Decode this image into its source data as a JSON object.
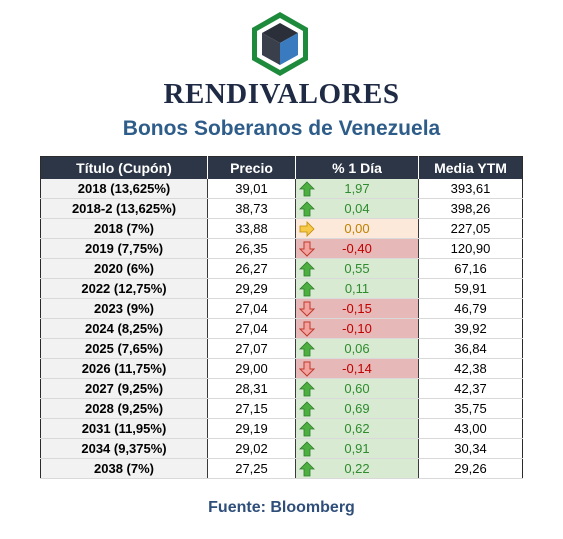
{
  "brand": "RENDIVALORES",
  "subtitle": "Bonos Soberanos de Venezuela",
  "table": {
    "headers": [
      "Título (Cupón)",
      "Precio",
      "% 1 Día",
      "Media YTM"
    ],
    "rows": [
      {
        "title": "2018 (13,625%)",
        "price": "39,01",
        "change": "1,97",
        "direction": "up",
        "ytm": "393,61"
      },
      {
        "title": "2018-2 (13,625%)",
        "price": "38,73",
        "change": "0,04",
        "direction": "up",
        "ytm": "398,26"
      },
      {
        "title": "2018 (7%)",
        "price": "33,88",
        "change": "0,00",
        "direction": "flat",
        "ytm": "227,05"
      },
      {
        "title": "2019 (7,75%)",
        "price": "26,35",
        "change": "-0,40",
        "direction": "down",
        "ytm": "120,90"
      },
      {
        "title": "2020 (6%)",
        "price": "26,27",
        "change": "0,55",
        "direction": "up",
        "ytm": "67,16"
      },
      {
        "title": "2022 (12,75%)",
        "price": "29,29",
        "change": "0,11",
        "direction": "up",
        "ytm": "59,91"
      },
      {
        "title": "2023 (9%)",
        "price": "27,04",
        "change": "-0,15",
        "direction": "down",
        "ytm": "46,79"
      },
      {
        "title": "2024 (8,25%)",
        "price": "27,04",
        "change": "-0,10",
        "direction": "down",
        "ytm": "39,92"
      },
      {
        "title": "2025 (7,65%)",
        "price": "27,07",
        "change": "0,06",
        "direction": "up",
        "ytm": "36,84"
      },
      {
        "title": "2026 (11,75%)",
        "price": "29,00",
        "change": "-0,14",
        "direction": "down",
        "ytm": "42,38"
      },
      {
        "title": "2027 (9,25%)",
        "price": "28,31",
        "change": "0,60",
        "direction": "up",
        "ytm": "42,37"
      },
      {
        "title": "2028 (9,25%)",
        "price": "27,15",
        "change": "0,69",
        "direction": "up",
        "ytm": "35,75"
      },
      {
        "title": "2031 (11,95%)",
        "price": "29,19",
        "change": "0,62",
        "direction": "up",
        "ytm": "43,00"
      },
      {
        "title": "2034 (9,375%)",
        "price": "29,02",
        "change": "0,91",
        "direction": "up",
        "ytm": "30,34"
      },
      {
        "title": "2038 (7%)",
        "price": "27,25",
        "change": "0,22",
        "direction": "up",
        "ytm": "29,26"
      }
    ]
  },
  "source": "Fuente: Bloomberg",
  "colors": {
    "header_bg": "#2d3647",
    "up_bg": "#d9ead3",
    "down_bg": "#e6b8b7",
    "flat_bg": "#fce9d9",
    "logo_green": "#1e8a3c",
    "logo_blue": "#3a7bbf"
  }
}
